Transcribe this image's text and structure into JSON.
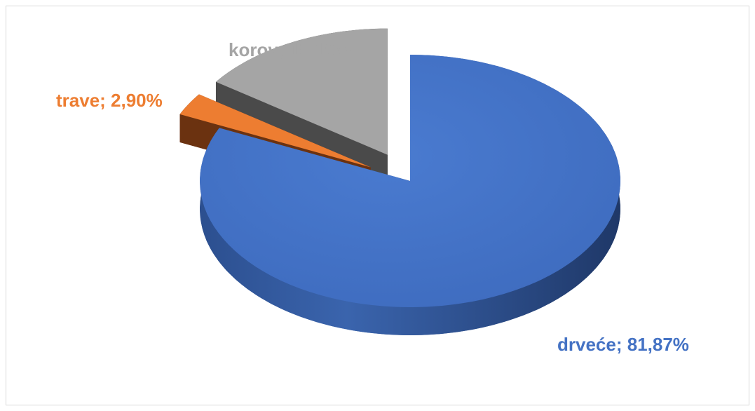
{
  "chart_data": {
    "type": "pie",
    "style": "3d-exploded",
    "title": "",
    "slices": [
      {
        "name": "drveće",
        "value": 81.87,
        "label": "drveće; 81,87%",
        "color": "#4472C4"
      },
      {
        "name": "trave",
        "value": 2.9,
        "label": "trave; 2,90%",
        "color": "#ED7D31"
      },
      {
        "name": "korov",
        "value": 15.19,
        "label": "korov; 15,19%",
        "color": "#A5A5A5"
      }
    ],
    "legend": "none"
  }
}
